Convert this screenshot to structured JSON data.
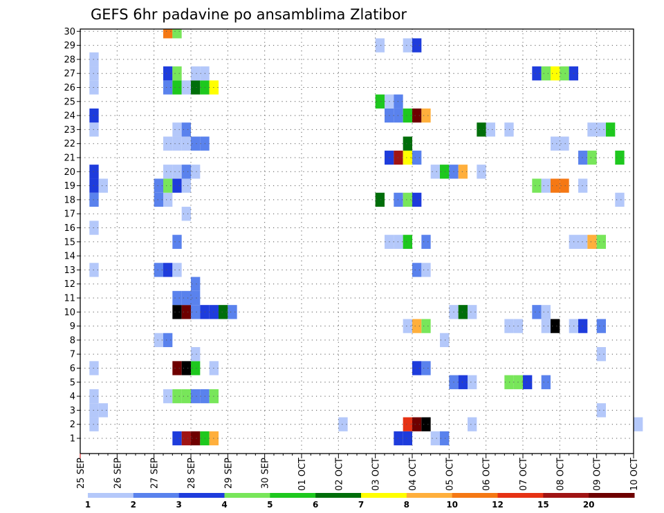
{
  "chart_data": {
    "type": "heatmap",
    "title": "GEFS 6hr padavine po ansamblima Zlatibor",
    "y_labels": [
      "1",
      "2",
      "3",
      "4",
      "5",
      "6",
      "7",
      "8",
      "9",
      "10",
      "11",
      "12",
      "13",
      "14",
      "15",
      "16",
      "17",
      "18",
      "19",
      "20",
      "21",
      "22",
      "23",
      "24",
      "25",
      "26",
      "27",
      "28",
      "29",
      "30"
    ],
    "x_labels": [
      "25 SEP",
      "26 SEP",
      "27 SEP",
      "28 SEP",
      "29 SEP",
      "30 SEP",
      "01 OCT",
      "02 OCT",
      "03 OCT",
      "04 OCT",
      "05 OCT",
      "06 OCT",
      "07 OCT",
      "08 OCT",
      "09 OCT",
      "10 OCT"
    ],
    "x_range_days": [
      0,
      15
    ],
    "step_hours": 6,
    "grid": true,
    "color_scale": {
      "labels": [
        "1",
        "2",
        "3",
        "4",
        "5",
        "6",
        "7",
        "8",
        "10",
        "12",
        "15",
        "20"
      ],
      "colors": [
        "#b4c8fa",
        "#5a82ed",
        "#1e3cdc",
        "#78e65a",
        "#1ec81e",
        "#006e0a",
        "#ffff00",
        "#ffaf3c",
        "#f57814",
        "#e63214",
        "#a01414",
        "#6e0000"
      ]
    },
    "cells": [
      {
        "m": 1,
        "t": [
          [
            10,
            3
          ],
          [
            11,
            11
          ],
          [
            12,
            12
          ],
          [
            13,
            5
          ],
          [
            14,
            8
          ],
          [
            34,
            3
          ],
          [
            35,
            3
          ],
          [
            38,
            1
          ],
          [
            39,
            2
          ]
        ]
      },
      {
        "m": 2,
        "t": [
          [
            1,
            1
          ],
          [
            28,
            1
          ],
          [
            35,
            10
          ],
          [
            36,
            12
          ],
          [
            37,
            13
          ],
          [
            42,
            1
          ],
          [
            60,
            1
          ]
        ]
      },
      {
        "m": 3,
        "t": [
          [
            1,
            1
          ],
          [
            2,
            1
          ],
          [
            56,
            1
          ]
        ]
      },
      {
        "m": 4,
        "t": [
          [
            1,
            1
          ],
          [
            9,
            1
          ],
          [
            10,
            4
          ],
          [
            11,
            4
          ],
          [
            12,
            2
          ],
          [
            13,
            2
          ],
          [
            14,
            4
          ]
        ]
      },
      {
        "m": 5,
        "t": [
          [
            40,
            2
          ],
          [
            41,
            3
          ],
          [
            42,
            1
          ],
          [
            46,
            4
          ],
          [
            47,
            4
          ],
          [
            48,
            3
          ],
          [
            50,
            2
          ]
        ]
      },
      {
        "m": 6,
        "t": [
          [
            1,
            1
          ],
          [
            10,
            12
          ],
          [
            11,
            13
          ],
          [
            12,
            5
          ],
          [
            14,
            1
          ],
          [
            36,
            3
          ],
          [
            37,
            2
          ]
        ]
      },
      {
        "m": 7,
        "t": [
          [
            12,
            1
          ],
          [
            56,
            1
          ]
        ]
      },
      {
        "m": 8,
        "t": [
          [
            8,
            1
          ],
          [
            9,
            2
          ],
          [
            39,
            1
          ]
        ]
      },
      {
        "m": 9,
        "t": [
          [
            35,
            1
          ],
          [
            36,
            8
          ],
          [
            37,
            4
          ],
          [
            46,
            1
          ],
          [
            47,
            1
          ],
          [
            50,
            1
          ],
          [
            51,
            13
          ],
          [
            53,
            1
          ],
          [
            54,
            3
          ],
          [
            56,
            2
          ]
        ]
      },
      {
        "m": 10,
        "t": [
          [
            10,
            13
          ],
          [
            11,
            12
          ],
          [
            12,
            2
          ],
          [
            13,
            3
          ],
          [
            14,
            3
          ],
          [
            15,
            6
          ],
          [
            16,
            2
          ],
          [
            40,
            1
          ],
          [
            41,
            6
          ],
          [
            42,
            1
          ],
          [
            49,
            2
          ],
          [
            50,
            1
          ]
        ]
      },
      {
        "m": 11,
        "t": [
          [
            10,
            2
          ],
          [
            11,
            2
          ],
          [
            12,
            2
          ]
        ]
      },
      {
        "m": 12,
        "t": [
          [
            12,
            2
          ]
        ]
      },
      {
        "m": 13,
        "t": [
          [
            1,
            1
          ],
          [
            8,
            2
          ],
          [
            9,
            3
          ],
          [
            10,
            1
          ],
          [
            36,
            2
          ],
          [
            37,
            1
          ]
        ]
      },
      {
        "m": 14,
        "t": []
      },
      {
        "m": 15,
        "t": [
          [
            10,
            2
          ],
          [
            33,
            1
          ],
          [
            34,
            1
          ],
          [
            35,
            5
          ],
          [
            37,
            2
          ],
          [
            53,
            1
          ],
          [
            54,
            1
          ],
          [
            55,
            8
          ],
          [
            56,
            4
          ]
        ]
      },
      {
        "m": 16,
        "t": [
          [
            1,
            1
          ]
        ]
      },
      {
        "m": 17,
        "t": [
          [
            11,
            1
          ]
        ]
      },
      {
        "m": 18,
        "t": [
          [
            1,
            2
          ],
          [
            8,
            2
          ],
          [
            9,
            1
          ],
          [
            32,
            6
          ],
          [
            34,
            2
          ],
          [
            35,
            4
          ],
          [
            36,
            3
          ],
          [
            58,
            1
          ]
        ]
      },
      {
        "m": 19,
        "t": [
          [
            1,
            3
          ],
          [
            2,
            1
          ],
          [
            8,
            2
          ],
          [
            9,
            4
          ],
          [
            10,
            3
          ],
          [
            11,
            1
          ],
          [
            49,
            4
          ],
          [
            50,
            1
          ],
          [
            51,
            9
          ],
          [
            52,
            9
          ],
          [
            54,
            1
          ]
        ]
      },
      {
        "m": 20,
        "t": [
          [
            1,
            3
          ],
          [
            9,
            1
          ],
          [
            10,
            1
          ],
          [
            11,
            2
          ],
          [
            12,
            1
          ],
          [
            38,
            1
          ],
          [
            39,
            5
          ],
          [
            40,
            2
          ],
          [
            41,
            8
          ],
          [
            43,
            1
          ]
        ]
      },
      {
        "m": 21,
        "t": [
          [
            33,
            3
          ],
          [
            34,
            11
          ],
          [
            35,
            7
          ],
          [
            36,
            2
          ],
          [
            54,
            2
          ],
          [
            55,
            4
          ],
          [
            58,
            5
          ]
        ]
      },
      {
        "m": 22,
        "t": [
          [
            9,
            1
          ],
          [
            10,
            1
          ],
          [
            11,
            1
          ],
          [
            12,
            2
          ],
          [
            13,
            2
          ],
          [
            35,
            6
          ],
          [
            51,
            1
          ],
          [
            52,
            1
          ]
        ]
      },
      {
        "m": 23,
        "t": [
          [
            1,
            1
          ],
          [
            10,
            1
          ],
          [
            11,
            2
          ],
          [
            43,
            6
          ],
          [
            44,
            1
          ],
          [
            46,
            1
          ],
          [
            55,
            1
          ],
          [
            56,
            1
          ],
          [
            57,
            5
          ]
        ]
      },
      {
        "m": 24,
        "t": [
          [
            1,
            3
          ],
          [
            33,
            2
          ],
          [
            34,
            2
          ],
          [
            35,
            5
          ],
          [
            36,
            12
          ],
          [
            37,
            8
          ]
        ]
      },
      {
        "m": 25,
        "t": [
          [
            32,
            5
          ],
          [
            33,
            1
          ],
          [
            34,
            2
          ]
        ]
      },
      {
        "m": 26,
        "t": [
          [
            1,
            1
          ],
          [
            9,
            2
          ],
          [
            10,
            5
          ],
          [
            11,
            1
          ],
          [
            12,
            6
          ],
          [
            13,
            5
          ],
          [
            14,
            7
          ]
        ]
      },
      {
        "m": 27,
        "t": [
          [
            1,
            1
          ],
          [
            9,
            3
          ],
          [
            10,
            4
          ],
          [
            12,
            1
          ],
          [
            13,
            1
          ],
          [
            49,
            3
          ],
          [
            50,
            4
          ],
          [
            51,
            7
          ],
          [
            52,
            4
          ],
          [
            53,
            3
          ]
        ]
      },
      {
        "m": 28,
        "t": [
          [
            1,
            1
          ]
        ]
      },
      {
        "m": 29,
        "t": [
          [
            32,
            1
          ],
          [
            35,
            1
          ],
          [
            36,
            3
          ]
        ]
      },
      {
        "m": 30,
        "t": [
          [
            9,
            9
          ],
          [
            10,
            4
          ]
        ]
      }
    ]
  }
}
